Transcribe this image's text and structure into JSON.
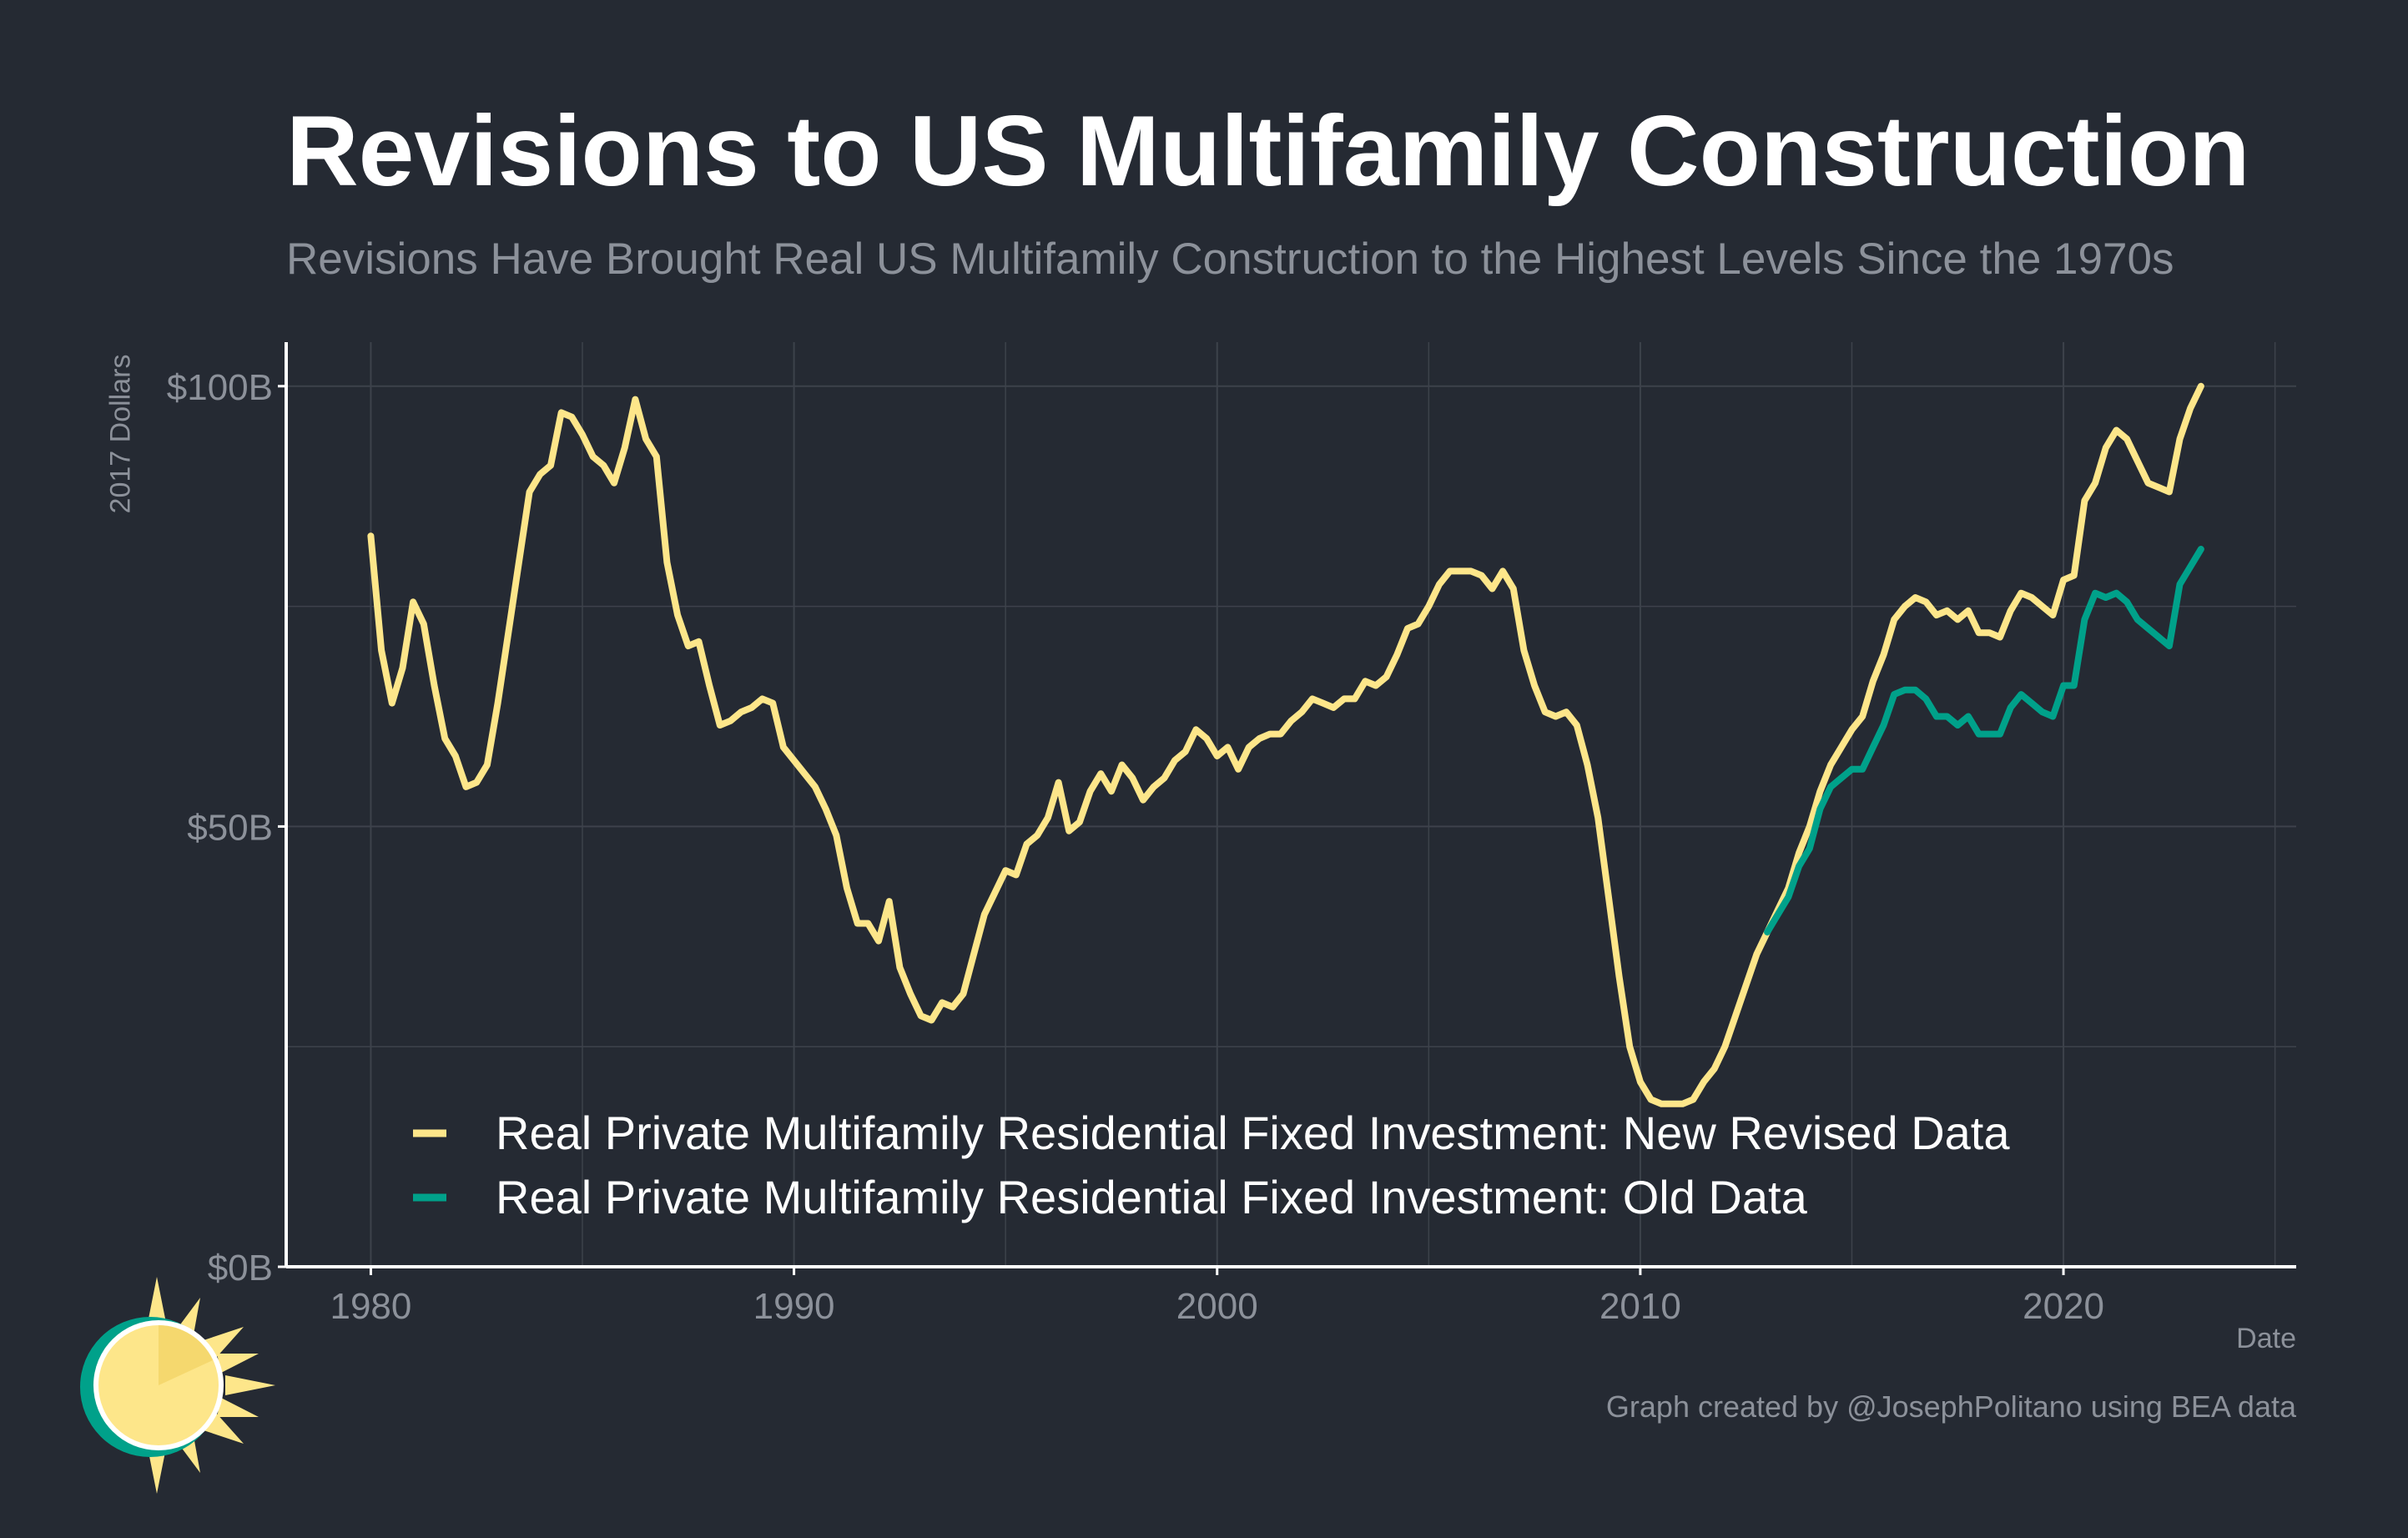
{
  "title": "Revisions to US Multifamily Construction",
  "subtitle": "Revisions Have Brought Real US Multifamily Construction to the Highest Levels Since the 1970s",
  "credit": "Graph created by @JosephPolitano using BEA data",
  "colors": {
    "background": "#252a33",
    "new": "#fde68a",
    "old": "#00a18a",
    "grid": "#3d424b",
    "axis": "#ffffff",
    "text": "#8c919a"
  },
  "chart_data": {
    "type": "line",
    "xlabel": "Date",
    "ylabel": "2017 Dollars",
    "xlim": [
      1978,
      2025.5
    ],
    "ylim": [
      0,
      105
    ],
    "x_ticks": [
      1980,
      1990,
      2000,
      2010,
      2020
    ],
    "x_tick_labels": [
      "1980",
      "1990",
      "2000",
      "2010",
      "2020"
    ],
    "y_ticks": [
      0,
      50,
      100
    ],
    "y_tick_labels": [
      "$0B",
      "$50B",
      "$100B"
    ],
    "grid": true,
    "legend_position": "bottom-left, inside plot",
    "series": [
      {
        "name": "Real Private Multifamily Residential Fixed Investment: New Revised Data",
        "color": "#fde68a",
        "points": [
          [
            1980.0,
            83
          ],
          [
            1980.25,
            70
          ],
          [
            1980.5,
            64
          ],
          [
            1980.75,
            68
          ],
          [
            1981.0,
            75.5
          ],
          [
            1981.25,
            73
          ],
          [
            1981.5,
            66
          ],
          [
            1981.75,
            60
          ],
          [
            1982.0,
            58
          ],
          [
            1982.25,
            54.5
          ],
          [
            1982.5,
            55
          ],
          [
            1982.75,
            57
          ],
          [
            1983.0,
            64
          ],
          [
            1983.25,
            72
          ],
          [
            1983.5,
            80
          ],
          [
            1983.75,
            88
          ],
          [
            1984.0,
            90
          ],
          [
            1984.25,
            91
          ],
          [
            1984.5,
            97
          ],
          [
            1984.75,
            96.5
          ],
          [
            1985.0,
            94.5
          ],
          [
            1985.25,
            92
          ],
          [
            1985.5,
            91
          ],
          [
            1985.75,
            89
          ],
          [
            1986.0,
            93
          ],
          [
            1986.25,
            98.5
          ],
          [
            1986.5,
            94
          ],
          [
            1986.75,
            92
          ],
          [
            1987.0,
            80
          ],
          [
            1987.25,
            74
          ],
          [
            1987.5,
            70.5
          ],
          [
            1987.75,
            71
          ],
          [
            1988.0,
            66
          ],
          [
            1988.25,
            61.5
          ],
          [
            1988.5,
            62
          ],
          [
            1988.75,
            63
          ],
          [
            1989.0,
            63.5
          ],
          [
            1989.25,
            64.5
          ],
          [
            1989.5,
            64
          ],
          [
            1989.75,
            59
          ],
          [
            1990.0,
            57.5
          ],
          [
            1990.25,
            56
          ],
          [
            1990.5,
            54.5
          ],
          [
            1990.75,
            52
          ],
          [
            1991.0,
            49
          ],
          [
            1991.25,
            43
          ],
          [
            1991.5,
            39
          ],
          [
            1991.75,
            39
          ],
          [
            1992.0,
            37
          ],
          [
            1992.25,
            41.5
          ],
          [
            1992.5,
            34
          ],
          [
            1992.75,
            31
          ],
          [
            1993.0,
            28.5
          ],
          [
            1993.25,
            28
          ],
          [
            1993.5,
            30
          ],
          [
            1993.75,
            29.5
          ],
          [
            1994.0,
            31
          ],
          [
            1994.25,
            35.5
          ],
          [
            1994.5,
            40
          ],
          [
            1994.75,
            42.5
          ],
          [
            1995.0,
            45
          ],
          [
            1995.25,
            44.5
          ],
          [
            1995.5,
            48
          ],
          [
            1995.75,
            49
          ],
          [
            1996.0,
            51
          ],
          [
            1996.25,
            55
          ],
          [
            1996.5,
            49.5
          ],
          [
            1996.75,
            50.5
          ],
          [
            1997.0,
            54
          ],
          [
            1997.25,
            56
          ],
          [
            1997.5,
            54
          ],
          [
            1997.75,
            57
          ],
          [
            1998.0,
            55.5
          ],
          [
            1998.25,
            53
          ],
          [
            1998.5,
            54.5
          ],
          [
            1998.75,
            55.5
          ],
          [
            1999.0,
            57.5
          ],
          [
            1999.25,
            58.5
          ],
          [
            1999.5,
            61
          ],
          [
            1999.75,
            60
          ],
          [
            2000.0,
            58
          ],
          [
            2000.25,
            59
          ],
          [
            2000.5,
            56.5
          ],
          [
            2000.75,
            59
          ],
          [
            2001.0,
            60
          ],
          [
            2001.25,
            60.5
          ],
          [
            2001.5,
            60.5
          ],
          [
            2001.75,
            62
          ],
          [
            2002.0,
            63
          ],
          [
            2002.25,
            64.5
          ],
          [
            2002.5,
            64
          ],
          [
            2002.75,
            63.5
          ],
          [
            2003.0,
            64.5
          ],
          [
            2003.25,
            64.5
          ],
          [
            2003.5,
            66.5
          ],
          [
            2003.75,
            66
          ],
          [
            2004.0,
            67
          ],
          [
            2004.25,
            69.5
          ],
          [
            2004.5,
            72.5
          ],
          [
            2004.75,
            73
          ],
          [
            2005.0,
            75
          ],
          [
            2005.25,
            77.5
          ],
          [
            2005.5,
            79
          ],
          [
            2005.75,
            79
          ],
          [
            2006.0,
            79
          ],
          [
            2006.25,
            78.5
          ],
          [
            2006.5,
            77
          ],
          [
            2006.75,
            79
          ],
          [
            2007.0,
            77
          ],
          [
            2007.25,
            70
          ],
          [
            2007.5,
            66
          ],
          [
            2007.75,
            63
          ],
          [
            2008.0,
            62.5
          ],
          [
            2008.25,
            63
          ],
          [
            2008.5,
            61.5
          ],
          [
            2008.75,
            57
          ],
          [
            2009.0,
            51
          ],
          [
            2009.25,
            42
          ],
          [
            2009.5,
            33
          ],
          [
            2009.75,
            25
          ],
          [
            2010.0,
            21
          ],
          [
            2010.25,
            19
          ],
          [
            2010.5,
            18.5
          ],
          [
            2010.75,
            18.5
          ],
          [
            2011.0,
            18.5
          ],
          [
            2011.25,
            19
          ],
          [
            2011.5,
            21
          ],
          [
            2011.75,
            22.5
          ],
          [
            2012.0,
            25
          ],
          [
            2012.25,
            28.5
          ],
          [
            2012.5,
            32
          ],
          [
            2012.75,
            35.5
          ],
          [
            2013.0,
            38
          ],
          [
            2013.25,
            40.5
          ],
          [
            2013.5,
            43
          ],
          [
            2013.75,
            47
          ],
          [
            2014.0,
            50
          ],
          [
            2014.25,
            54
          ],
          [
            2014.5,
            57
          ],
          [
            2014.75,
            59
          ],
          [
            2015.0,
            61
          ],
          [
            2015.25,
            62.5
          ],
          [
            2015.5,
            66.5
          ],
          [
            2015.75,
            69.5
          ],
          [
            2016.0,
            73.5
          ],
          [
            2016.25,
            75
          ],
          [
            2016.5,
            76
          ],
          [
            2016.75,
            75.5
          ],
          [
            2017.0,
            74
          ],
          [
            2017.25,
            74.5
          ],
          [
            2017.5,
            73.5
          ],
          [
            2017.75,
            74.5
          ],
          [
            2018.0,
            72
          ],
          [
            2018.25,
            72
          ],
          [
            2018.5,
            71.5
          ],
          [
            2018.75,
            74.5
          ],
          [
            2019.0,
            76.5
          ],
          [
            2019.25,
            76
          ],
          [
            2019.5,
            75
          ],
          [
            2019.75,
            74
          ],
          [
            2020.0,
            78
          ],
          [
            2020.25,
            78.5
          ],
          [
            2020.5,
            87
          ],
          [
            2020.75,
            89
          ],
          [
            2021.0,
            93
          ],
          [
            2021.25,
            95
          ],
          [
            2021.5,
            94
          ],
          [
            2021.75,
            91.5
          ],
          [
            2022.0,
            89
          ],
          [
            2022.25,
            88.5
          ],
          [
            2022.5,
            88
          ],
          [
            2022.75,
            94
          ],
          [
            2023.0,
            97.5
          ],
          [
            2023.25,
            100
          ]
        ]
      },
      {
        "name": "Real Private Multifamily Residential Fixed Investment: Old Data",
        "color": "#00a18a",
        "points": [
          [
            2013.0,
            38
          ],
          [
            2013.25,
            40
          ],
          [
            2013.5,
            42
          ],
          [
            2013.75,
            45.5
          ],
          [
            2014.0,
            47.5
          ],
          [
            2014.25,
            52
          ],
          [
            2014.5,
            54.5
          ],
          [
            2014.75,
            55.5
          ],
          [
            2015.0,
            56.5
          ],
          [
            2015.25,
            56.5
          ],
          [
            2015.5,
            59
          ],
          [
            2015.75,
            61.5
          ],
          [
            2016.0,
            65
          ],
          [
            2016.25,
            65.5
          ],
          [
            2016.5,
            65.5
          ],
          [
            2016.75,
            64.5
          ],
          [
            2017.0,
            62.5
          ],
          [
            2017.25,
            62.5
          ],
          [
            2017.5,
            61.5
          ],
          [
            2017.75,
            62.5
          ],
          [
            2018.0,
            60.5
          ],
          [
            2018.25,
            60.5
          ],
          [
            2018.5,
            60.5
          ],
          [
            2018.75,
            63.5
          ],
          [
            2019.0,
            65
          ],
          [
            2019.25,
            64
          ],
          [
            2019.5,
            63
          ],
          [
            2019.75,
            62.5
          ],
          [
            2020.0,
            66
          ],
          [
            2020.25,
            66
          ],
          [
            2020.5,
            73.5
          ],
          [
            2020.75,
            76.5
          ],
          [
            2021.0,
            76
          ],
          [
            2021.25,
            76.5
          ],
          [
            2021.5,
            75.5
          ],
          [
            2021.75,
            73.5
          ],
          [
            2022.0,
            72.5
          ],
          [
            2022.25,
            71.5
          ],
          [
            2022.5,
            70.5
          ],
          [
            2022.75,
            77.5
          ],
          [
            2023.0,
            79.5
          ],
          [
            2023.25,
            81.5
          ]
        ]
      }
    ]
  }
}
